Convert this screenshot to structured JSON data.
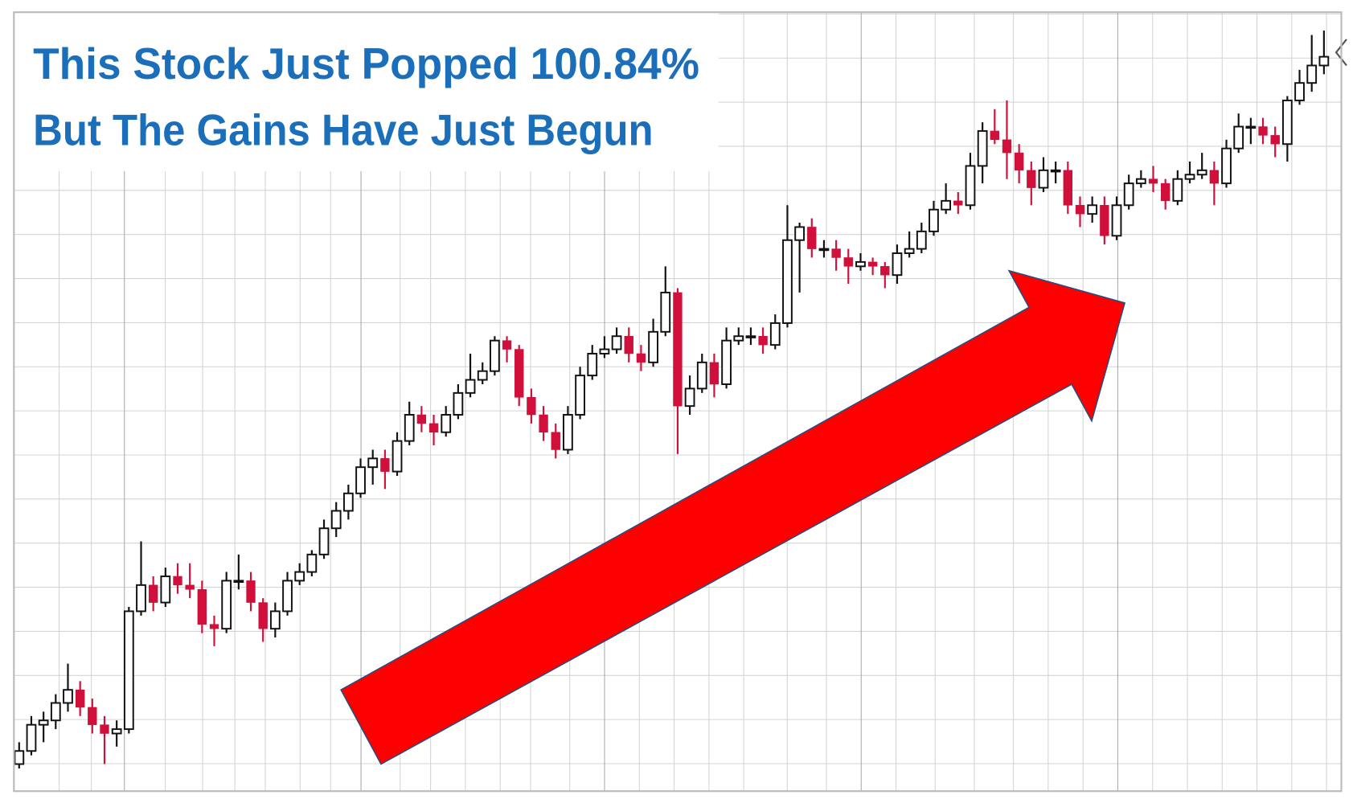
{
  "chart_data": {
    "type": "candlestick",
    "title": [
      "This Stock Just Popped 100.84%",
      "But The Gains Have Just Begun"
    ],
    "ylim": [
      0,
      89
    ],
    "grid": true,
    "up_color": "#111111",
    "down_color": "#d0103a",
    "arrow_color": "#ff0000",
    "ohlc": [
      [
        3,
        5.5,
        2.5,
        4.5
      ],
      [
        4.5,
        8.5,
        4,
        7.5
      ],
      [
        7.5,
        9,
        5.5,
        8
      ],
      [
        8,
        11,
        7,
        10
      ],
      [
        10,
        14.5,
        9,
        11.5
      ],
      [
        11.5,
        12.5,
        8.5,
        9.5
      ],
      [
        9.5,
        10.5,
        6.5,
        7.5
      ],
      [
        7.5,
        8.5,
        3,
        6.5
      ],
      [
        6.5,
        8,
        5,
        7
      ],
      [
        7,
        21,
        6.5,
        20.5
      ],
      [
        20.5,
        28.5,
        20,
        23.5
      ],
      [
        23.5,
        24.5,
        20.5,
        21.5
      ],
      [
        21.5,
        25.5,
        21,
        24.5
      ],
      [
        24.5,
        26,
        22.5,
        23.5
      ],
      [
        23.5,
        26,
        22,
        23
      ],
      [
        23,
        24,
        18,
        19
      ],
      [
        19,
        20,
        16.5,
        18.5
      ],
      [
        18.5,
        25,
        18,
        24
      ],
      [
        24,
        27,
        23,
        24
      ],
      [
        24,
        25,
        20.5,
        21.5
      ],
      [
        21.5,
        22,
        17,
        18.5
      ],
      [
        18.5,
        21.5,
        17.5,
        20.5
      ],
      [
        20.5,
        25,
        20,
        24
      ],
      [
        24,
        26,
        23.5,
        25
      ],
      [
        25,
        27.5,
        24.5,
        27
      ],
      [
        27,
        31,
        26.5,
        30
      ],
      [
        30,
        33,
        29,
        32
      ],
      [
        32,
        35,
        31,
        34
      ],
      [
        34,
        38,
        33.5,
        37
      ],
      [
        37,
        39,
        35,
        38
      ],
      [
        38,
        39,
        34.5,
        36.5
      ],
      [
        36.5,
        41,
        36,
        40
      ],
      [
        40,
        44.5,
        39.5,
        43
      ],
      [
        43,
        44,
        41,
        42
      ],
      [
        42,
        43,
        39.5,
        41
      ],
      [
        41,
        44,
        40.5,
        43
      ],
      [
        43,
        46.5,
        42.5,
        45.5
      ],
      [
        45.5,
        50,
        45,
        47
      ],
      [
        47,
        49,
        46.5,
        48
      ],
      [
        48,
        52,
        47.5,
        51.5
      ],
      [
        51.5,
        52,
        49,
        50.5
      ],
      [
        50.5,
        51,
        44,
        45
      ],
      [
        45,
        46,
        42,
        43
      ],
      [
        43,
        44,
        40,
        41
      ],
      [
        41,
        42,
        38,
        39
      ],
      [
        39,
        44,
        38.5,
        43
      ],
      [
        43,
        48.5,
        42.5,
        47.5
      ],
      [
        47.5,
        51,
        47,
        50
      ],
      [
        50,
        52,
        49.5,
        50.5
      ],
      [
        50.5,
        53,
        50,
        52
      ],
      [
        52,
        53,
        49,
        50
      ],
      [
        50,
        51,
        48,
        49
      ],
      [
        49,
        54,
        48.5,
        52.5
      ],
      [
        52.5,
        60,
        52,
        57
      ],
      [
        57,
        57.5,
        38.5,
        44
      ],
      [
        44,
        47.5,
        43,
        46
      ],
      [
        46,
        50,
        45.5,
        49
      ],
      [
        49,
        50,
        45,
        46.5
      ],
      [
        46.5,
        53,
        46,
        51.5
      ],
      [
        51.5,
        53,
        51,
        52
      ],
      [
        52,
        53,
        51,
        52
      ],
      [
        52,
        53,
        50,
        51
      ],
      [
        51,
        54.5,
        50.5,
        53.5
      ],
      [
        53.5,
        67,
        53,
        63
      ],
      [
        63,
        65,
        57,
        64.5
      ],
      [
        64.5,
        65.5,
        61,
        62
      ],
      [
        62,
        63,
        61,
        62
      ],
      [
        62,
        63,
        59.5,
        61
      ],
      [
        61,
        62,
        58,
        60
      ],
      [
        60,
        61.5,
        59.5,
        60.5
      ],
      [
        60.5,
        61,
        59,
        60
      ],
      [
        60,
        60.5,
        57.5,
        59
      ],
      [
        59,
        62.5,
        58,
        61.5
      ],
      [
        61.5,
        64,
        61,
        62
      ],
      [
        62,
        65,
        61.5,
        64
      ],
      [
        64,
        67.5,
        63.5,
        66.5
      ],
      [
        66.5,
        69.5,
        66,
        67.5
      ],
      [
        67.5,
        68.5,
        66,
        67
      ],
      [
        67,
        73,
        66.5,
        71.5
      ],
      [
        71.5,
        76.5,
        69.5,
        75.5
      ],
      [
        75.5,
        78,
        74,
        74.5
      ],
      [
        74.5,
        79,
        70,
        73
      ],
      [
        73,
        74,
        69.5,
        71
      ],
      [
        71,
        72,
        67,
        69
      ],
      [
        69,
        72.5,
        68.5,
        71
      ],
      [
        71,
        72,
        69.5,
        71
      ],
      [
        71,
        72,
        66,
        67
      ],
      [
        67,
        68,
        64.5,
        66
      ],
      [
        66,
        68,
        65,
        67
      ],
      [
        67,
        68,
        62.5,
        63.5
      ],
      [
        63.5,
        68,
        63,
        67
      ],
      [
        67,
        70.5,
        66.5,
        69.5
      ],
      [
        69.5,
        71,
        69,
        70
      ],
      [
        70,
        71.5,
        68.5,
        69.5
      ],
      [
        69.5,
        70,
        66.5,
        67.5
      ],
      [
        67.5,
        71,
        67,
        70
      ],
      [
        70,
        72,
        69.5,
        70.5
      ],
      [
        70.5,
        73,
        70,
        71
      ],
      [
        71,
        72,
        67,
        69.5
      ],
      [
        69.5,
        74.5,
        69,
        73.5
      ],
      [
        73.5,
        77.5,
        73,
        76
      ],
      [
        76,
        77,
        74,
        76
      ],
      [
        76,
        77,
        74,
        75
      ],
      [
        75,
        76,
        72.5,
        74
      ],
      [
        74,
        79.5,
        72,
        79
      ],
      [
        79,
        82.5,
        78.5,
        81
      ],
      [
        81,
        86.5,
        80,
        83
      ],
      [
        83,
        87,
        82,
        84
      ]
    ]
  }
}
